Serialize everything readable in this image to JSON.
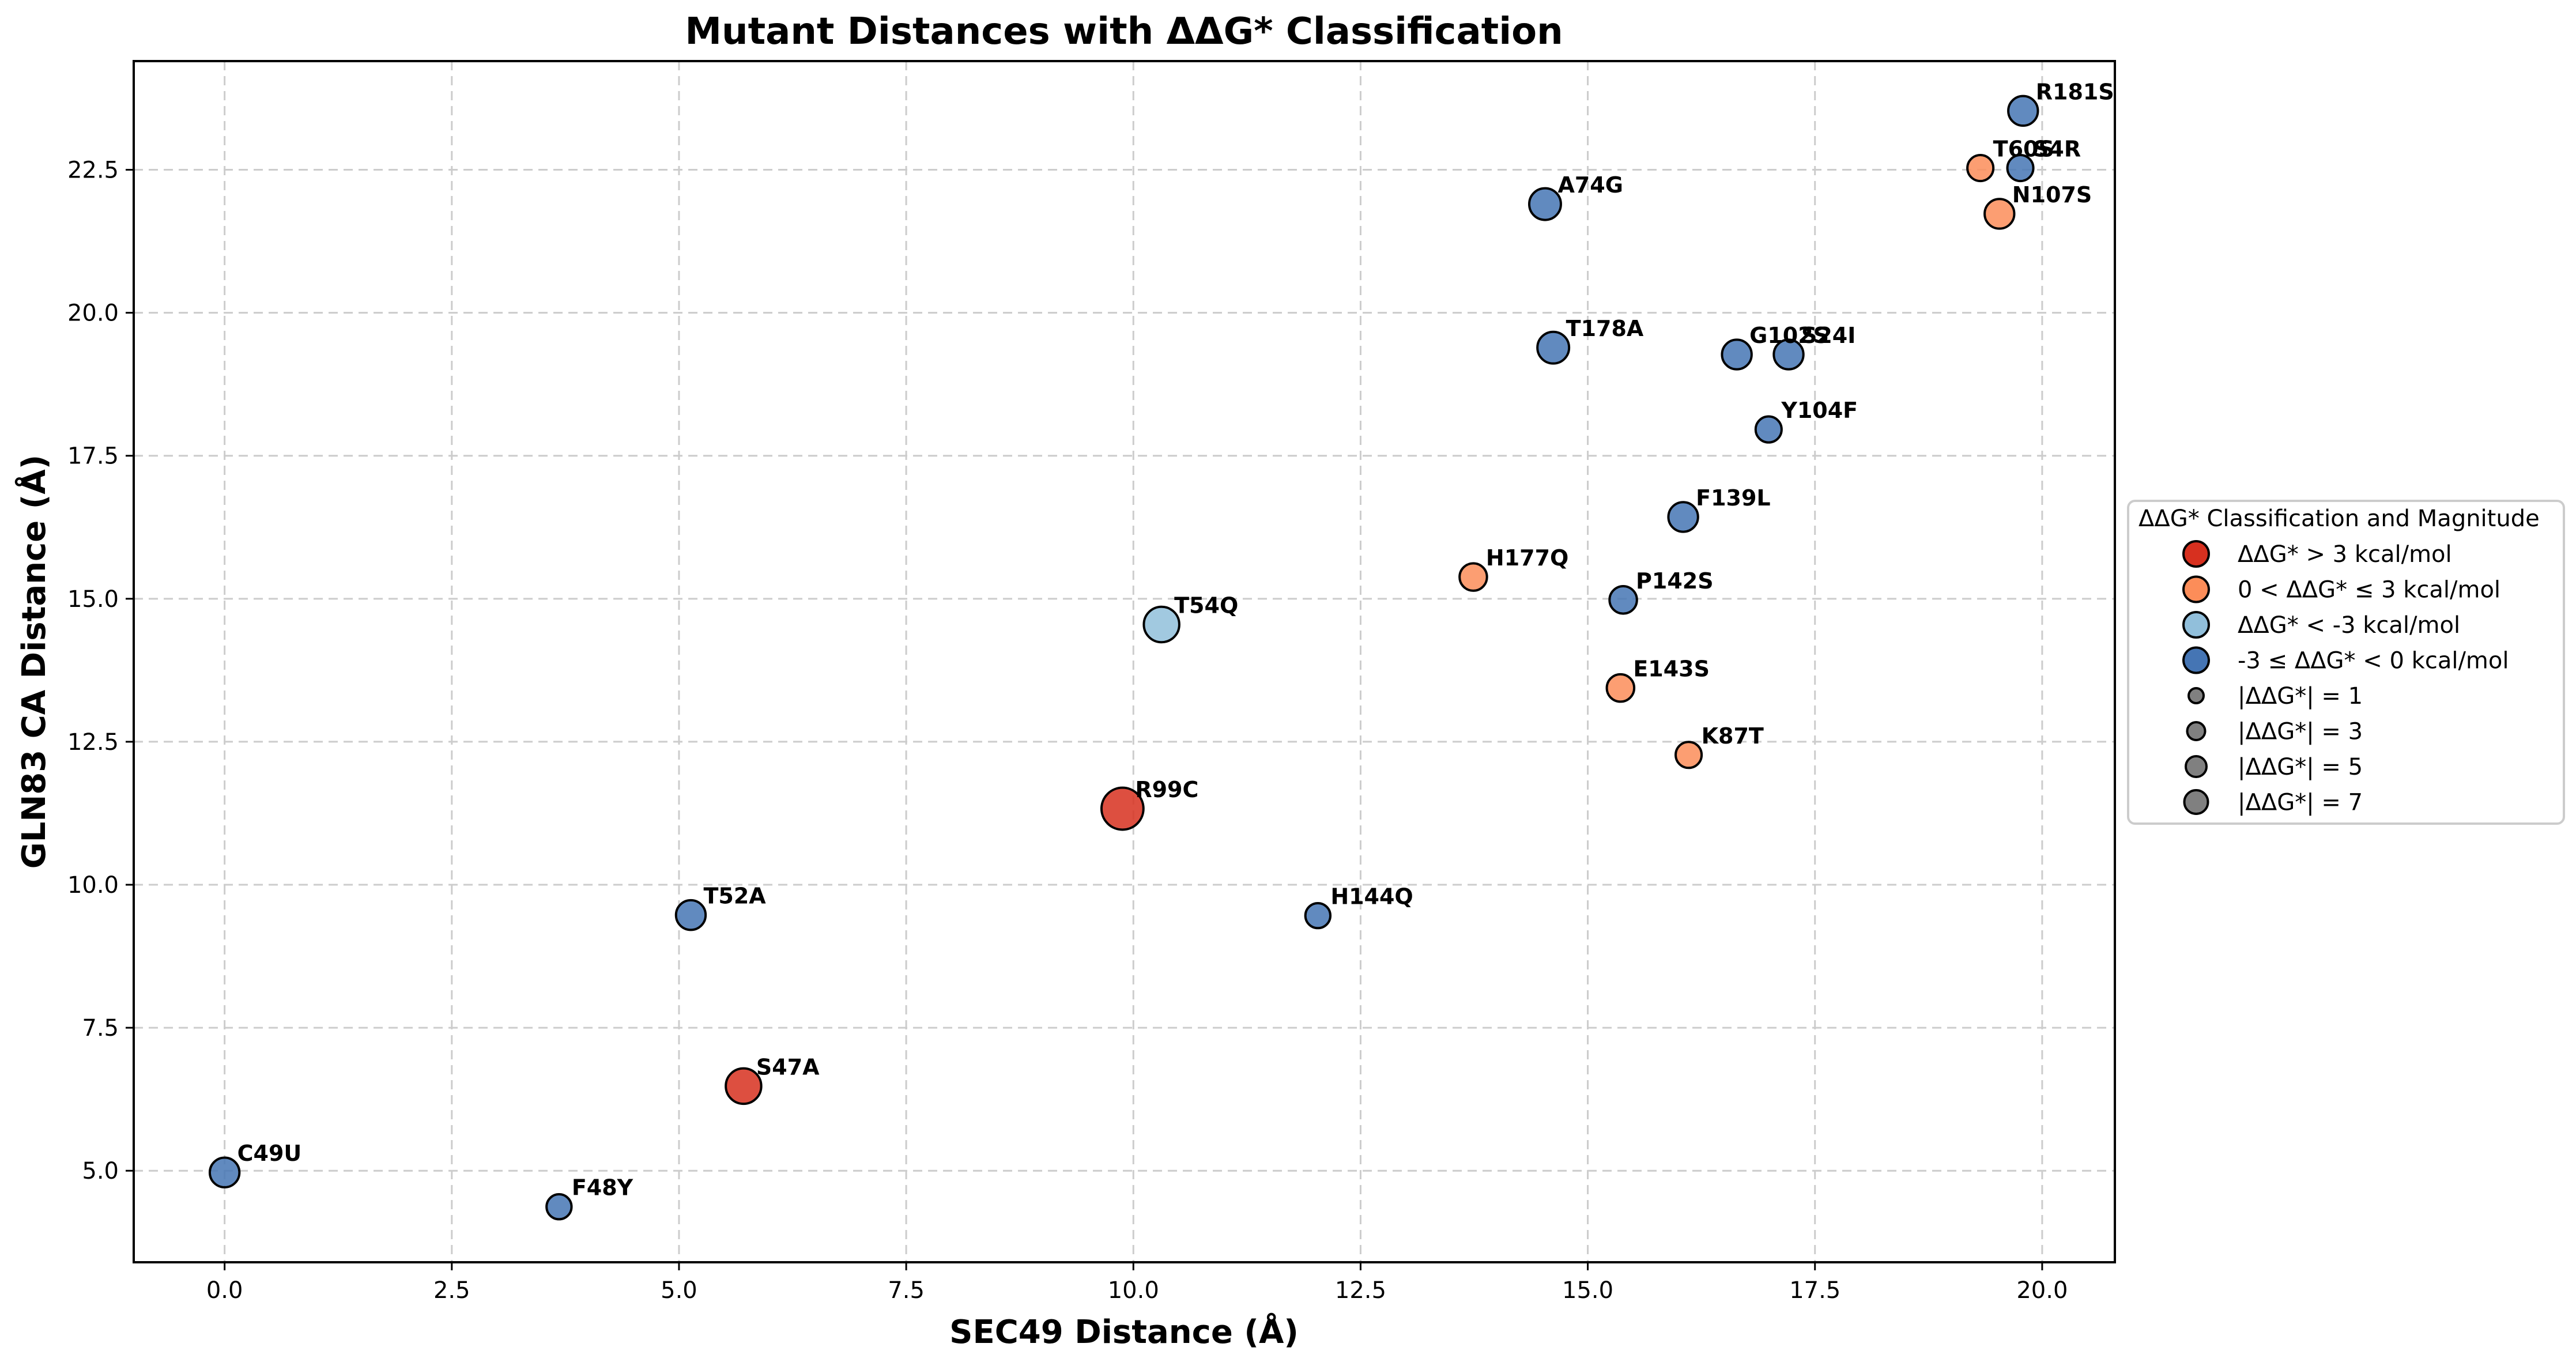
{
  "chart_data": {
    "type": "scatter",
    "title": "Mutant Distances with ΔΔG* Classification",
    "xlabel": "SEC49 Distance (Å)",
    "ylabel": "GLN83 CA Distance (Å)",
    "xlim": [
      -1.0,
      20.8
    ],
    "ylim": [
      3.4,
      24.4
    ],
    "xticks": [
      0.0,
      2.5,
      5.0,
      7.5,
      10.0,
      12.5,
      15.0,
      17.5,
      20.0
    ],
    "xtick_labels": [
      "0.0",
      "2.5",
      "5.0",
      "7.5",
      "10.0",
      "12.5",
      "15.0",
      "17.5",
      "20.0"
    ],
    "yticks": [
      5.0,
      7.5,
      10.0,
      12.5,
      15.0,
      17.5,
      20.0,
      22.5
    ],
    "ytick_labels": [
      "5.0",
      "7.5",
      "10.0",
      "12.5",
      "15.0",
      "17.5",
      "20.0",
      "22.5"
    ],
    "grid": true,
    "legend_position": "right, outside plot",
    "legend_title": "ΔΔG* Classification and Magnitude",
    "classes": [
      {
        "key": "gt3",
        "label": "ΔΔG* > 3 kcal/mol",
        "color": "#d7301f"
      },
      {
        "key": "0to3",
        "label": "0 < ΔΔG* ≤ 3 kcal/mol",
        "color": "#fc8d59"
      },
      {
        "key": "ltm3",
        "label": "ΔΔG* < -3 kcal/mol",
        "color": "#91bfdb"
      },
      {
        "key": "m3to0",
        "label": "-3 ≤ ΔΔG* < 0 kcal/mol",
        "color": "#4575b4"
      }
    ],
    "size_legend": [
      {
        "label": "|ΔΔG*| = 1",
        "magnitude": 1
      },
      {
        "label": "|ΔΔG*| = 3",
        "magnitude": 3
      },
      {
        "label": "|ΔΔG*| = 5",
        "magnitude": 5
      },
      {
        "label": "|ΔΔG*| = 7",
        "magnitude": 7
      }
    ],
    "points": [
      {
        "label": "C49U",
        "x": 0.0,
        "y": 4.97,
        "class": "m3to0",
        "magnitude": 2.0
      },
      {
        "label": "F48Y",
        "x": 3.68,
        "y": 4.37,
        "class": "m3to0",
        "magnitude": 1.0
      },
      {
        "label": "S47A",
        "x": 5.71,
        "y": 6.48,
        "class": "gt3",
        "magnitude": 3.5
      },
      {
        "label": "T52A",
        "x": 5.13,
        "y": 9.47,
        "class": "m3to0",
        "magnitude": 2.0
      },
      {
        "label": "H144Q",
        "x": 12.03,
        "y": 9.46,
        "class": "m3to0",
        "magnitude": 1.0
      },
      {
        "label": "R99C",
        "x": 9.88,
        "y": 11.33,
        "class": "gt3",
        "magnitude": 5.5
      },
      {
        "label": "T54Q",
        "x": 10.31,
        "y": 14.55,
        "class": "ltm3",
        "magnitude": 3.5
      },
      {
        "label": "H177Q",
        "x": 13.74,
        "y": 15.38,
        "class": "0to3",
        "magnitude": 1.5
      },
      {
        "label": "E143S",
        "x": 15.36,
        "y": 13.44,
        "class": "0to3",
        "magnitude": 1.5
      },
      {
        "label": "K87T",
        "x": 16.11,
        "y": 12.27,
        "class": "0to3",
        "magnitude": 1.2
      },
      {
        "label": "P142S",
        "x": 15.39,
        "y": 14.98,
        "class": "m3to0",
        "magnitude": 1.5
      },
      {
        "label": "F139L",
        "x": 16.05,
        "y": 16.43,
        "class": "m3to0",
        "magnitude": 2.0
      },
      {
        "label": "Y104F",
        "x": 16.99,
        "y": 17.96,
        "class": "m3to0",
        "magnitude": 1.2
      },
      {
        "label": "A74G",
        "x": 14.53,
        "y": 21.9,
        "class": "m3to0",
        "magnitude": 2.5
      },
      {
        "label": "T178A",
        "x": 14.62,
        "y": 19.39,
        "class": "m3to0",
        "magnitude": 2.5
      },
      {
        "label": "G102S",
        "x": 16.64,
        "y": 19.27,
        "class": "m3to0",
        "magnitude": 2.0
      },
      {
        "label": "S24I",
        "x": 17.21,
        "y": 19.27,
        "class": "m3to0",
        "magnitude": 2.0
      },
      {
        "label": "R181S",
        "x": 19.79,
        "y": 23.53,
        "class": "m3to0",
        "magnitude": 2.0
      },
      {
        "label": "T60S",
        "x": 19.32,
        "y": 22.53,
        "class": "0to3",
        "magnitude": 1.2
      },
      {
        "label": "S4R",
        "x": 19.76,
        "y": 22.53,
        "class": "m3to0",
        "magnitude": 1.2
      },
      {
        "label": "N107S",
        "x": 19.53,
        "y": 21.73,
        "class": "0to3",
        "magnitude": 2.0
      }
    ]
  }
}
